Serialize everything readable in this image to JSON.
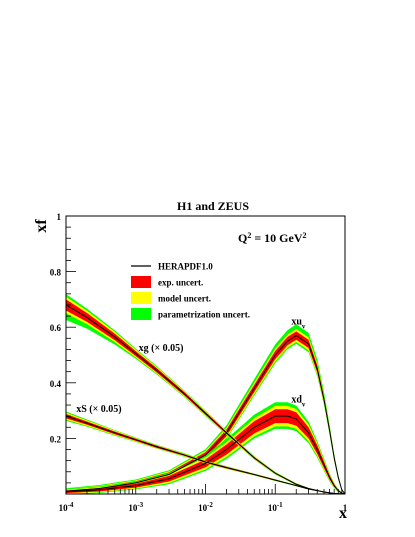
{
  "chart_data": {
    "type": "line",
    "title": "H1 and ZEUS",
    "ylabel": "xf",
    "xlabel": "x",
    "scale_label_html": "Q² = 10 GeV²",
    "x_scale": "log",
    "xlim": [
      0.0001,
      1
    ],
    "ylim": [
      0,
      1
    ],
    "x_ticks": [
      {
        "x": 0.0001,
        "base": "10",
        "exp": "-4"
      },
      {
        "x": 0.001,
        "base": "10",
        "exp": "-3"
      },
      {
        "x": 0.01,
        "base": "10",
        "exp": "-2"
      },
      {
        "x": 0.1,
        "base": "10",
        "exp": "-1"
      },
      {
        "x": 1,
        "label": "1"
      }
    ],
    "y_ticks": [
      "0.2",
      "0.4",
      "0.6",
      "0.8",
      "1"
    ],
    "y_tick_values": [
      0.2,
      0.4,
      0.6,
      0.8,
      1.0
    ],
    "legend": [
      {
        "key": "line",
        "label": "HERAPDF1.0",
        "color": "#000000"
      },
      {
        "key": "exp",
        "label": "exp. uncert.",
        "color": "#ff0000"
      },
      {
        "key": "model",
        "label": "model uncert.",
        "color": "#ffff00"
      },
      {
        "key": "param",
        "label": "parametrization uncert.",
        "color": "#00ff00"
      }
    ],
    "series": [
      {
        "name": "xu_v",
        "label_main": "xu",
        "label_sub": "v",
        "label_x": 0.17,
        "label_y": 0.61,
        "x": [
          0.0001,
          0.0003,
          0.001,
          0.003,
          0.01,
          0.02,
          0.05,
          0.1,
          0.15,
          0.2,
          0.3,
          0.4,
          0.5,
          0.6,
          0.7,
          0.8,
          0.9,
          1.0
        ],
        "y": [
          0.01,
          0.02,
          0.04,
          0.07,
          0.14,
          0.22,
          0.38,
          0.5,
          0.55,
          0.57,
          0.54,
          0.45,
          0.34,
          0.23,
          0.13,
          0.06,
          0.015,
          0.0
        ],
        "exp": [
          0.005,
          0.006,
          0.006,
          0.008,
          0.01,
          0.012,
          0.013,
          0.015,
          0.015,
          0.015,
          0.015,
          0.013,
          0.01,
          0.008,
          0.006,
          0.004,
          0.002,
          0.0
        ],
        "model": [
          0.006,
          0.007,
          0.007,
          0.009,
          0.012,
          0.014,
          0.016,
          0.018,
          0.018,
          0.018,
          0.018,
          0.016,
          0.012,
          0.01,
          0.007,
          0.005,
          0.002,
          0.0
        ],
        "param_up": [
          0.007,
          0.008,
          0.008,
          0.01,
          0.014,
          0.02,
          0.026,
          0.03,
          0.032,
          0.033,
          0.032,
          0.028,
          0.022,
          0.016,
          0.01,
          0.006,
          0.003,
          0.0
        ],
        "param_down": [
          0.006,
          0.007,
          0.007,
          0.009,
          0.012,
          0.014,
          0.016,
          0.018,
          0.018,
          0.018,
          0.018,
          0.016,
          0.012,
          0.01,
          0.007,
          0.005,
          0.002,
          0.0
        ]
      },
      {
        "name": "xd_v",
        "label_main": "xd",
        "label_sub": "v",
        "label_x": 0.17,
        "label_y": 0.33,
        "x": [
          0.0001,
          0.0003,
          0.001,
          0.003,
          0.01,
          0.02,
          0.05,
          0.1,
          0.15,
          0.2,
          0.3,
          0.4,
          0.5,
          0.6,
          0.7,
          0.8,
          0.9,
          1.0
        ],
        "y": [
          0.008,
          0.015,
          0.03,
          0.055,
          0.11,
          0.16,
          0.24,
          0.28,
          0.28,
          0.27,
          0.22,
          0.16,
          0.105,
          0.06,
          0.03,
          0.012,
          0.003,
          0.0
        ],
        "exp": [
          0.005,
          0.006,
          0.007,
          0.01,
          0.014,
          0.018,
          0.022,
          0.025,
          0.025,
          0.024,
          0.02,
          0.016,
          0.012,
          0.008,
          0.005,
          0.003,
          0.001,
          0.0
        ],
        "model": [
          0.006,
          0.007,
          0.008,
          0.012,
          0.016,
          0.02,
          0.024,
          0.027,
          0.027,
          0.026,
          0.022,
          0.017,
          0.013,
          0.009,
          0.006,
          0.003,
          0.001,
          0.0
        ],
        "param_up": [
          0.007,
          0.008,
          0.01,
          0.014,
          0.02,
          0.026,
          0.032,
          0.034,
          0.034,
          0.032,
          0.027,
          0.02,
          0.014,
          0.01,
          0.006,
          0.003,
          0.001,
          0.0
        ],
        "param_down": [
          0.006,
          0.007,
          0.008,
          0.012,
          0.016,
          0.02,
          0.024,
          0.027,
          0.027,
          0.026,
          0.022,
          0.017,
          0.013,
          0.009,
          0.006,
          0.003,
          0.001,
          0.0
        ]
      },
      {
        "name": "xg (× 0.05)",
        "label_main": "xg (× 0.05)",
        "label_x": 0.0011,
        "label_y": 0.515,
        "x": [
          0.0001,
          0.0002,
          0.0005,
          0.001,
          0.002,
          0.005,
          0.01,
          0.02,
          0.05,
          0.1,
          0.2,
          0.3,
          0.5,
          0.7,
          1.0
        ],
        "y": [
          0.68,
          0.635,
          0.565,
          0.505,
          0.445,
          0.36,
          0.29,
          0.22,
          0.13,
          0.075,
          0.035,
          0.02,
          0.007,
          0.002,
          0.0
        ],
        "exp": [
          0.02,
          0.016,
          0.012,
          0.009,
          0.008,
          0.006,
          0.005,
          0.004,
          0.003,
          0.002,
          0.002,
          0.001,
          0.001,
          0.0,
          0.0
        ],
        "model": [
          0.022,
          0.018,
          0.014,
          0.011,
          0.009,
          0.007,
          0.006,
          0.005,
          0.004,
          0.003,
          0.002,
          0.001,
          0.001,
          0.0,
          0.0
        ],
        "param_up": [
          0.025,
          0.02,
          0.015,
          0.011,
          0.009,
          0.007,
          0.006,
          0.005,
          0.004,
          0.003,
          0.002,
          0.001,
          0.001,
          0.0,
          0.0
        ],
        "param_down": [
          0.045,
          0.032,
          0.02,
          0.012,
          0.009,
          0.007,
          0.006,
          0.005,
          0.004,
          0.003,
          0.002,
          0.001,
          0.001,
          0.0,
          0.0
        ]
      },
      {
        "name": "xS (× 0.05)",
        "label_main": "xS (× 0.05)",
        "label_x": 0.00014,
        "label_y": 0.295,
        "x": [
          0.0001,
          0.0002,
          0.0005,
          0.001,
          0.002,
          0.005,
          0.01,
          0.02,
          0.05,
          0.1,
          0.2,
          0.3,
          0.5,
          0.7,
          1.0
        ],
        "y": [
          0.28,
          0.255,
          0.22,
          0.195,
          0.17,
          0.14,
          0.115,
          0.095,
          0.07,
          0.05,
          0.03,
          0.018,
          0.007,
          0.002,
          0.0
        ],
        "exp": [
          0.008,
          0.006,
          0.005,
          0.004,
          0.004,
          0.003,
          0.003,
          0.003,
          0.002,
          0.002,
          0.001,
          0.001,
          0.0,
          0.0,
          0.0
        ],
        "model": [
          0.01,
          0.008,
          0.006,
          0.005,
          0.004,
          0.004,
          0.003,
          0.003,
          0.002,
          0.002,
          0.001,
          0.001,
          0.0,
          0.0,
          0.0
        ],
        "param_up": [
          0.011,
          0.008,
          0.006,
          0.005,
          0.004,
          0.004,
          0.003,
          0.003,
          0.002,
          0.002,
          0.001,
          0.001,
          0.0,
          0.0,
          0.0
        ],
        "param_down": [
          0.011,
          0.008,
          0.006,
          0.005,
          0.004,
          0.004,
          0.003,
          0.003,
          0.002,
          0.002,
          0.001,
          0.001,
          0.0,
          0.0,
          0.0
        ]
      }
    ]
  }
}
